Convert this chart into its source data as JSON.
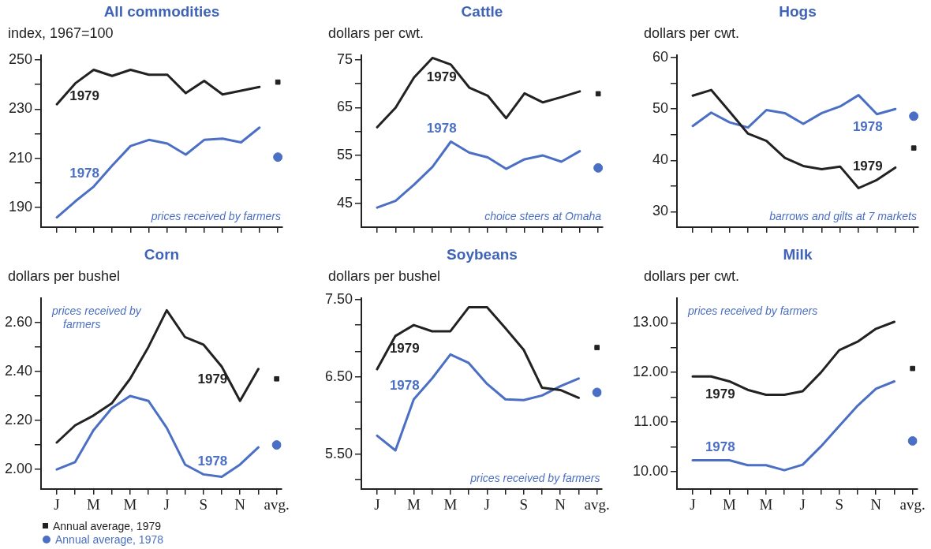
{
  "chart_data": [
    {
      "type": "line",
      "title": "All commodities",
      "ylabel": "index, 1967=100",
      "categories": [
        "J",
        null,
        "M",
        null,
        "M",
        null,
        "J",
        null,
        "S",
        null,
        "N",
        null,
        "avg."
      ],
      "ylim": [
        182,
        252
      ],
      "yticks": [
        190,
        {
          "value": 200,
          "label": null
        },
        210,
        {
          "value": 220,
          "label": null
        },
        230,
        {
          "value": 240,
          "label": null
        },
        250
      ],
      "tick_labels": "y",
      "grid": false,
      "legend": false,
      "annotations": [
        "prices received by farmers"
      ],
      "series": [
        {
          "name": "1979",
          "color": "#222222",
          "marker": "none",
          "values": [
            232,
            240.5,
            246,
            243.5,
            246,
            244,
            244,
            236.5,
            241.5,
            236,
            237.5,
            239,
            null
          ]
        },
        {
          "name": "1978",
          "color": "#4a6fc4",
          "marker": "none",
          "values": [
            186,
            192.5,
            198.5,
            207,
            215,
            217.5,
            216,
            211.5,
            217.5,
            218,
            216.5,
            222.5,
            null
          ]
        },
        {
          "type": "scatter",
          "color": "#222222",
          "marker": "square",
          "x": [
            "avg."
          ],
          "values": [
            241
          ]
        },
        {
          "type": "scatter",
          "color": "#4a6fc4",
          "marker": "circle",
          "x": [
            "avg."
          ],
          "values": [
            210.5
          ]
        }
      ]
    },
    {
      "type": "line",
      "title": "Cattle",
      "ylabel": "dollars per cwt.",
      "categories": [
        "J",
        null,
        "M",
        null,
        "M",
        null,
        "J",
        null,
        "S",
        null,
        "N",
        null,
        "avg."
      ],
      "ylim": [
        40,
        76
      ],
      "yticks": [
        45,
        {
          "value": 50,
          "label": null
        },
        55,
        {
          "value": 60,
          "label": null
        },
        65,
        {
          "value": 70,
          "label": null
        },
        75
      ],
      "tick_labels": "y",
      "grid": false,
      "legend": false,
      "annotations": [
        "choice steers at Omaha"
      ],
      "series": [
        {
          "name": "1979",
          "color": "#222222",
          "marker": "none",
          "values": [
            60.9,
            65,
            71.3,
            75.4,
            74,
            69.2,
            67.5,
            62.8,
            68,
            66.1,
            67.2,
            68.4,
            null
          ]
        },
        {
          "name": "1978",
          "color": "#4a6fc4",
          "marker": "none",
          "values": [
            44.1,
            45.5,
            48.9,
            52.6,
            57.9,
            55.6,
            54.6,
            52.2,
            54.2,
            55,
            53.7,
            55.9,
            null
          ]
        },
        {
          "type": "scatter",
          "color": "#222222",
          "marker": "square",
          "x": [
            "avg."
          ],
          "values": [
            67.9
          ]
        },
        {
          "type": "scatter",
          "color": "#4a6fc4",
          "marker": "circle",
          "x": [
            "avg."
          ],
          "values": [
            52.4
          ]
        }
      ]
    },
    {
      "type": "line",
      "title": "Hogs",
      "ylabel": "dollars per cwt.",
      "categories": [
        "J",
        null,
        "M",
        null,
        "M",
        null,
        "J",
        null,
        "S",
        null,
        "N",
        null,
        "avg."
      ],
      "ylim": [
        27,
        60.5
      ],
      "yticks": [
        30,
        {
          "value": 35,
          "label": null
        },
        40,
        {
          "value": 45,
          "label": null
        },
        50,
        {
          "value": 55,
          "label": null
        },
        60
      ],
      "tick_labels": "y",
      "grid": false,
      "legend": false,
      "annotations": [
        "barrows and gilts at 7 markets"
      ],
      "series": [
        {
          "name": "1979",
          "color": "#222222",
          "marker": "none",
          "values": [
            52.6,
            53.7,
            49.5,
            45.2,
            43.8,
            40.5,
            38.9,
            38.3,
            38.8,
            34.6,
            36.2,
            38.6,
            null
          ]
        },
        {
          "name": "1978",
          "color": "#4a6fc4",
          "marker": "none",
          "values": [
            46.7,
            49.3,
            47.4,
            46.4,
            49.8,
            49.2,
            47.1,
            49.2,
            50.5,
            52.7,
            49,
            50,
            null
          ]
        },
        {
          "type": "scatter",
          "color": "#222222",
          "marker": "square",
          "x": [
            "avg."
          ],
          "values": [
            42.4
          ]
        },
        {
          "type": "scatter",
          "color": "#4a6fc4",
          "marker": "circle",
          "x": [
            "avg."
          ],
          "values": [
            48.6
          ]
        }
      ]
    },
    {
      "type": "line",
      "title": "Corn",
      "ylabel": "dollars per bushel",
      "categories": [
        "J",
        null,
        "M",
        null,
        "M",
        null,
        "J",
        null,
        "S",
        null,
        "N",
        null,
        "avg."
      ],
      "ylim": [
        1.92,
        2.7
      ],
      "yticks": [
        {
          "value": 2,
          "label": "2.00"
        },
        {
          "value": 2.1,
          "label": null
        },
        {
          "value": 2.2,
          "label": "2.20"
        },
        {
          "value": 2.3,
          "label": null
        },
        {
          "value": 2.4,
          "label": "2.40"
        },
        {
          "value": 2.5,
          "label": null
        },
        {
          "value": 2.6,
          "label": "2.60"
        }
      ],
      "grid": false,
      "legend": "bottom left",
      "annotations": [
        "prices received by farmers"
      ],
      "series": [
        {
          "name": "1979",
          "color": "#222222",
          "marker": "none",
          "values": [
            2.11,
            2.18,
            2.22,
            2.27,
            2.37,
            2.5,
            2.65,
            2.54,
            2.51,
            2.42,
            2.28,
            2.41,
            null
          ]
        },
        {
          "name": "1978",
          "color": "#4a6fc4",
          "marker": "none",
          "values": [
            2,
            2.03,
            2.16,
            2.25,
            2.3,
            2.28,
            2.17,
            2.02,
            1.98,
            1.97,
            2.02,
            2.09,
            null
          ]
        },
        {
          "type": "scatter",
          "name": "Annual average, 1979",
          "color": "#222222",
          "marker": "square",
          "x": [
            "avg."
          ],
          "values": [
            2.37
          ]
        },
        {
          "type": "scatter",
          "name": "Annual average, 1978",
          "color": "#4a6fc4",
          "marker": "circle",
          "x": [
            "avg."
          ],
          "values": [
            2.1
          ]
        }
      ]
    },
    {
      "type": "line",
      "title": "Soybeans",
      "ylabel": "dollars per bushel",
      "categories": [
        "J",
        null,
        "M",
        null,
        "M",
        null,
        "J",
        null,
        "S",
        null,
        "N",
        null,
        "avg."
      ],
      "ylim": [
        5.05,
        7.52
      ],
      "yticks": [
        {
          "value": 5.17,
          "label": null
        },
        {
          "value": 5.5,
          "label": "5.50"
        },
        {
          "value": 5.83,
          "label": null
        },
        {
          "value": 6.17,
          "label": null
        },
        {
          "value": 6.5,
          "label": "6.50"
        },
        {
          "value": 6.83,
          "label": null
        },
        {
          "value": 7.17,
          "label": null
        },
        {
          "value": 7.5,
          "label": "7.50"
        }
      ],
      "grid": false,
      "legend": false,
      "annotations": [
        "prices received by farmers"
      ],
      "series": [
        {
          "name": "1979",
          "color": "#222222",
          "marker": "none",
          "values": [
            6.6,
            7.03,
            7.17,
            7.09,
            7.09,
            7.4,
            7.4,
            7.13,
            6.85,
            6.36,
            6.33,
            6.23,
            null
          ]
        },
        {
          "name": "1978",
          "color": "#4a6fc4",
          "marker": "none",
          "values": [
            5.74,
            5.55,
            6.21,
            6.48,
            6.79,
            6.68,
            6.41,
            6.21,
            6.2,
            6.26,
            6.38,
            6.48,
            null
          ]
        },
        {
          "type": "scatter",
          "color": "#222222",
          "marker": "square",
          "x": [
            "avg."
          ],
          "values": [
            6.88
          ]
        },
        {
          "type": "scatter",
          "color": "#4a6fc4",
          "marker": "circle",
          "x": [
            "avg."
          ],
          "values": [
            6.3
          ]
        }
      ]
    },
    {
      "type": "line",
      "title": "Milk",
      "ylabel": "dollars per cwt.",
      "categories": [
        "J",
        null,
        "M",
        null,
        "M",
        null,
        "J",
        null,
        "S",
        null,
        "N",
        null,
        "avg."
      ],
      "ylim": [
        9.65,
        13.5
      ],
      "yticks": [
        {
          "value": 10,
          "label": "10.00"
        },
        {
          "value": 10.5,
          "label": null
        },
        {
          "value": 11,
          "label": "11.00"
        },
        {
          "value": 11.5,
          "label": null
        },
        {
          "value": 12,
          "label": "12.00"
        },
        {
          "value": 12.5,
          "label": null
        },
        {
          "value": 13,
          "label": "13.00"
        }
      ],
      "grid": false,
      "legend": false,
      "annotations": [
        "prices received by farmers"
      ],
      "series": [
        {
          "name": "1979",
          "color": "#222222",
          "marker": "none",
          "values": [
            11.92,
            11.92,
            11.82,
            11.65,
            11.55,
            11.55,
            11.62,
            12,
            12.45,
            12.62,
            12.88,
            13.02,
            null
          ]
        },
        {
          "name": "1978",
          "color": "#4a6fc4",
          "marker": "none",
          "values": [
            10.23,
            10.23,
            10.23,
            10.13,
            10.13,
            10.03,
            10.14,
            10.51,
            10.92,
            11.33,
            11.67,
            11.82,
            null
          ]
        },
        {
          "type": "scatter",
          "color": "#222222",
          "marker": "square",
          "x": [
            "avg."
          ],
          "values": [
            12.08
          ]
        },
        {
          "type": "scatter",
          "color": "#4a6fc4",
          "marker": "circle",
          "x": [
            "avg."
          ],
          "values": [
            10.62
          ]
        }
      ]
    }
  ]
}
